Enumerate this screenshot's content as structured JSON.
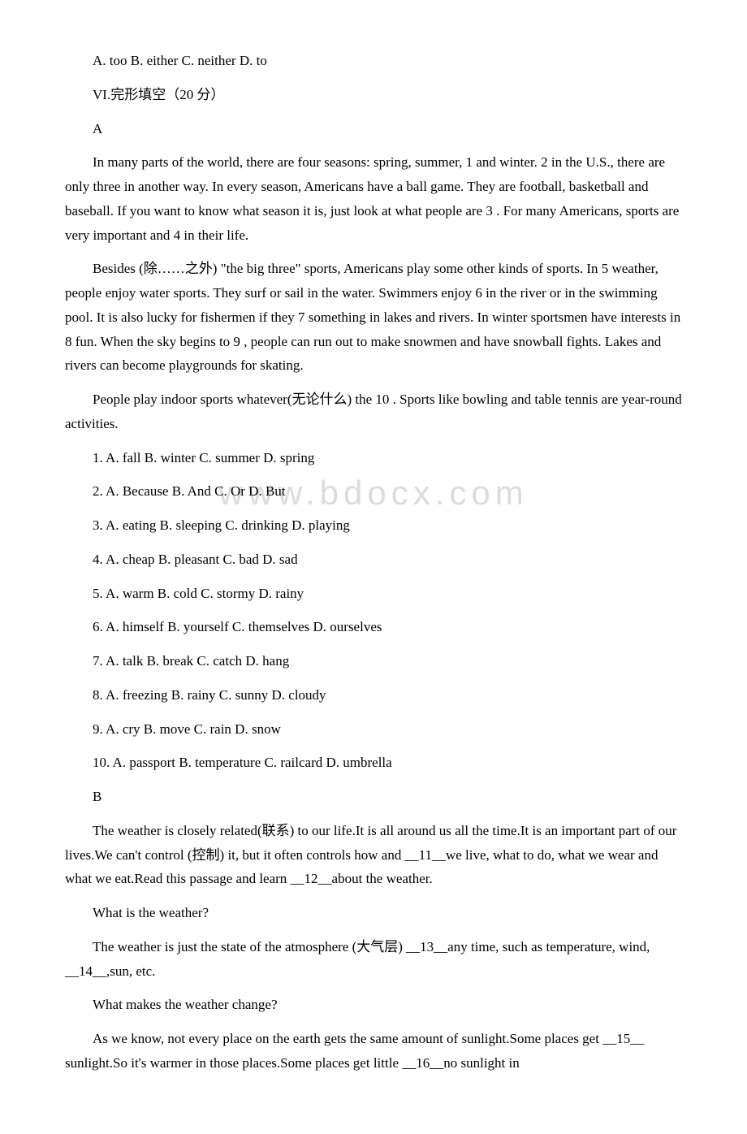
{
  "watermark": "www.bdocx.com",
  "lines": {
    "q_intro": " A. too B. either C. neither D. to",
    "section_vi": "VI.完形填空（20 分）",
    "label_a": "A",
    "para_a1": "In many parts of the world, there are four seasons: spring, summer,  1 and winter.  2  in the U.S., there are only three in another way. In every season, Americans have a ball game. They are football, basketball and baseball. If you want to know what season it is, just look at what people are  3 . For many Americans, sports are very important and  4  in their life.",
    "para_a2": "Besides (除……之外) \"the big three\" sports, Americans play some other kinds of sports. In  5 weather, people enjoy water sports. They surf or sail in the water. Swimmers enjoy  6 in the river or in the swimming pool. It is also lucky for fishermen if they  7  something in lakes and rivers. In winter sportsmen have interests in  8  fun. When the sky begins to  9 , people can run out to make snowmen and have snowball fights. Lakes and rivers can become playgrounds for skating.",
    "para_a3": "People play indoor sports whatever(无论什么) the  10 . Sports like bowling and table tennis are year-round activities.",
    "qa1": "1. A. fall B. winter C. summer D. spring",
    "qa2": "2. A. Because B. And C. Or D. But",
    "qa3": "3. A. eating B. sleeping C. drinking D. playing",
    "qa4": "4. A. cheap B. pleasant C. bad D. sad",
    "qa5": "5. A. warm B. cold C. stormy D. rainy",
    "qa6": "6. A. himself B. yourself C. themselves D. ourselves",
    "qa7": "7. A. talk B. break C. catch D. hang",
    "qa8": "8. A. freezing B. rainy C. sunny D. cloudy",
    "qa9": "9. A. cry B. move C. rain D. snow",
    "qa10": "10. A. passport B. temperature C. railcard D. umbrella",
    "label_b": "B",
    "para_b1": "The weather is closely related(联系) to our life.It is all around us all the time.It is an important part of our lives.We can't control (控制) it, but it often controls how and __11__we live, what to do, what we wear and what we eat.Read this passage and learn __12__about the weather.",
    "qb_heading1": "What is the weather?",
    "para_b2": "The weather is just the state of the atmosphere (大气层) __13__any time, such as temperature, wind, __14__,sun, etc.",
    "qb_heading2": "What makes the weather change?",
    "para_b3": "As we know, not every place on the earth gets the same amount of sunlight.Some places get __15__ sunlight.So it's warmer in those places.Some places get little __16__no sunlight in"
  }
}
